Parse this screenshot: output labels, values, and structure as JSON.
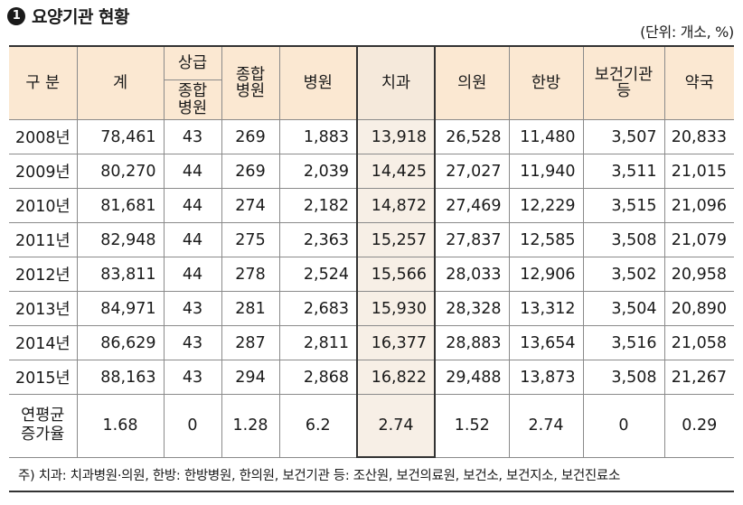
{
  "title": {
    "number_badge": "1",
    "text": "요양기관 현황"
  },
  "unit_note": "(단위: 개소, %)",
  "header": {
    "category": "구 분",
    "total": "계",
    "tertiary": "상급",
    "tertiary_general_line1": "종합",
    "tertiary_general_line2": "병원",
    "general_line1": "종합",
    "general_line2": "병원",
    "hospital": "병원",
    "dental": "치과",
    "clinic": "의원",
    "oriental": "한방",
    "health_line1": "보건기관",
    "health_line2": "등",
    "pharmacy": "약국"
  },
  "rows": [
    {
      "year": "2008년",
      "total": "78,461",
      "tertiary": "43",
      "general": "269",
      "hospital": "1,883",
      "dental": "13,918",
      "clinic": "26,528",
      "oriental": "11,480",
      "health": "3,507",
      "pharmacy": "20,833"
    },
    {
      "year": "2009년",
      "total": "80,270",
      "tertiary": "44",
      "general": "269",
      "hospital": "2,039",
      "dental": "14,425",
      "clinic": "27,027",
      "oriental": "11,940",
      "health": "3,511",
      "pharmacy": "21,015"
    },
    {
      "year": "2010년",
      "total": "81,681",
      "tertiary": "44",
      "general": "274",
      "hospital": "2,182",
      "dental": "14,872",
      "clinic": "27,469",
      "oriental": "12,229",
      "health": "3,515",
      "pharmacy": "21,096"
    },
    {
      "year": "2011년",
      "total": "82,948",
      "tertiary": "44",
      "general": "275",
      "hospital": "2,363",
      "dental": "15,257",
      "clinic": "27,837",
      "oriental": "12,585",
      "health": "3,508",
      "pharmacy": "21,079"
    },
    {
      "year": "2012년",
      "total": "83,811",
      "tertiary": "44",
      "general": "278",
      "hospital": "2,524",
      "dental": "15,566",
      "clinic": "28,033",
      "oriental": "12,906",
      "health": "3,502",
      "pharmacy": "20,958"
    },
    {
      "year": "2013년",
      "total": "84,971",
      "tertiary": "43",
      "general": "281",
      "hospital": "2,683",
      "dental": "15,930",
      "clinic": "28,328",
      "oriental": "13,312",
      "health": "3,504",
      "pharmacy": "20,890"
    },
    {
      "year": "2014년",
      "total": "86,629",
      "tertiary": "43",
      "general": "287",
      "hospital": "2,811",
      "dental": "16,377",
      "clinic": "28,883",
      "oriental": "13,654",
      "health": "3,516",
      "pharmacy": "21,058"
    },
    {
      "year": "2015년",
      "total": "88,163",
      "tertiary": "43",
      "general": "294",
      "hospital": "2,868",
      "dental": "16,822",
      "clinic": "29,488",
      "oriental": "13,873",
      "health": "3,508",
      "pharmacy": "21,267"
    }
  ],
  "rate_row": {
    "label_line1": "연평균",
    "label_line2": "증가율",
    "total": "1.68",
    "tertiary": "0",
    "general": "1.28",
    "hospital": "6.2",
    "dental": "2.74",
    "clinic": "1.52",
    "oriental": "2.74",
    "health": "0",
    "pharmacy": "0.29"
  },
  "footnote": "주) 치과: 치과병원·의원, 한방: 한방병원, 한의원, 보건기관 등: 조산원, 보건의료원, 보건소, 보건지소, 보건진료소"
}
